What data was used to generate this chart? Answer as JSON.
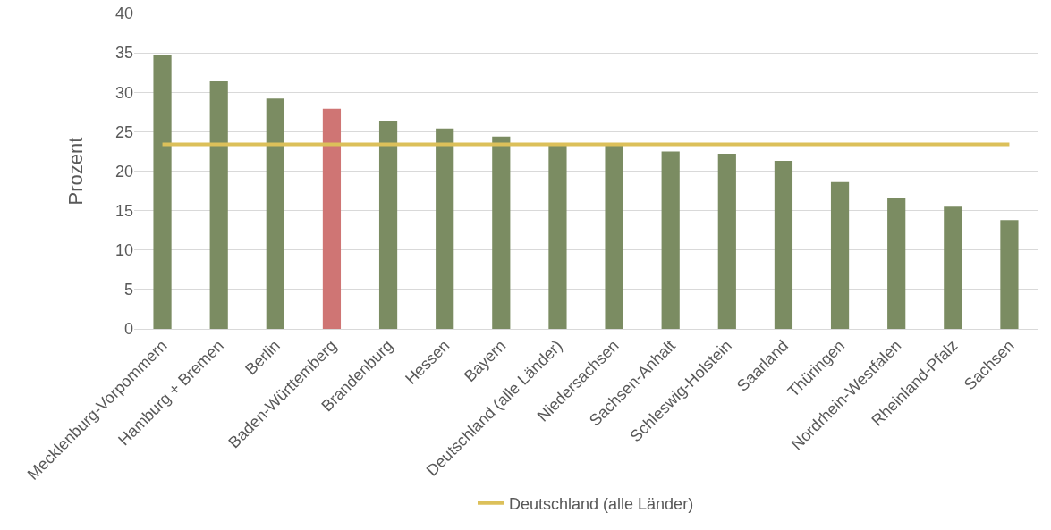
{
  "chart_data": {
    "type": "bar",
    "ylabel": "Prozent",
    "categories": [
      "Mecklenburg-Vorpommern",
      "Hamburg + Bremen",
      "Berlin",
      "Baden-Württemberg",
      "Brandenburg",
      "Hessen",
      "Bayern",
      "Deutschland (alle Länder)",
      "Niedersachsen",
      "Sachsen-Anhalt",
      "Schleswig-Holstein",
      "Saarland",
      "Thüringen",
      "Nordrhein-Westfalen",
      "Rheinland-Pfalz",
      "Sachsen"
    ],
    "series": [
      {
        "colors": [
          "#7b8c62",
          "#7b8c62",
          "#7b8c62",
          "#cf7574",
          "#7b8c62",
          "#7b8c62",
          "#7b8c62",
          "#7b8c62",
          "#7b8c62",
          "#7b8c62",
          "#7b8c62",
          "#7b8c62",
          "#7b8c62",
          "#7b8c62",
          "#7b8c62",
          "#7b8c62"
        ],
        "values": [
          34.7,
          31.4,
          29.2,
          27.9,
          26.4,
          25.4,
          24.4,
          23.4,
          23.3,
          22.5,
          22.2,
          21.3,
          18.6,
          16.6,
          15.5,
          13.8
        ]
      },
      {
        "type": "line",
        "name": "Deutschland (alle Länder)",
        "color": "#dcc05a",
        "values": [
          23.4,
          23.4,
          23.4,
          23.4,
          23.4,
          23.4,
          23.4,
          23.4,
          23.4,
          23.4,
          23.4,
          23.4,
          23.4,
          23.4,
          23.4,
          23.4
        ]
      }
    ],
    "ylim": [
      0,
      40
    ],
    "yticks": [
      0,
      5,
      10,
      15,
      20,
      25,
      30,
      35,
      40
    ],
    "grid": "y",
    "legend": "bottom",
    "marker": "none",
    "line_style": "solid"
  }
}
